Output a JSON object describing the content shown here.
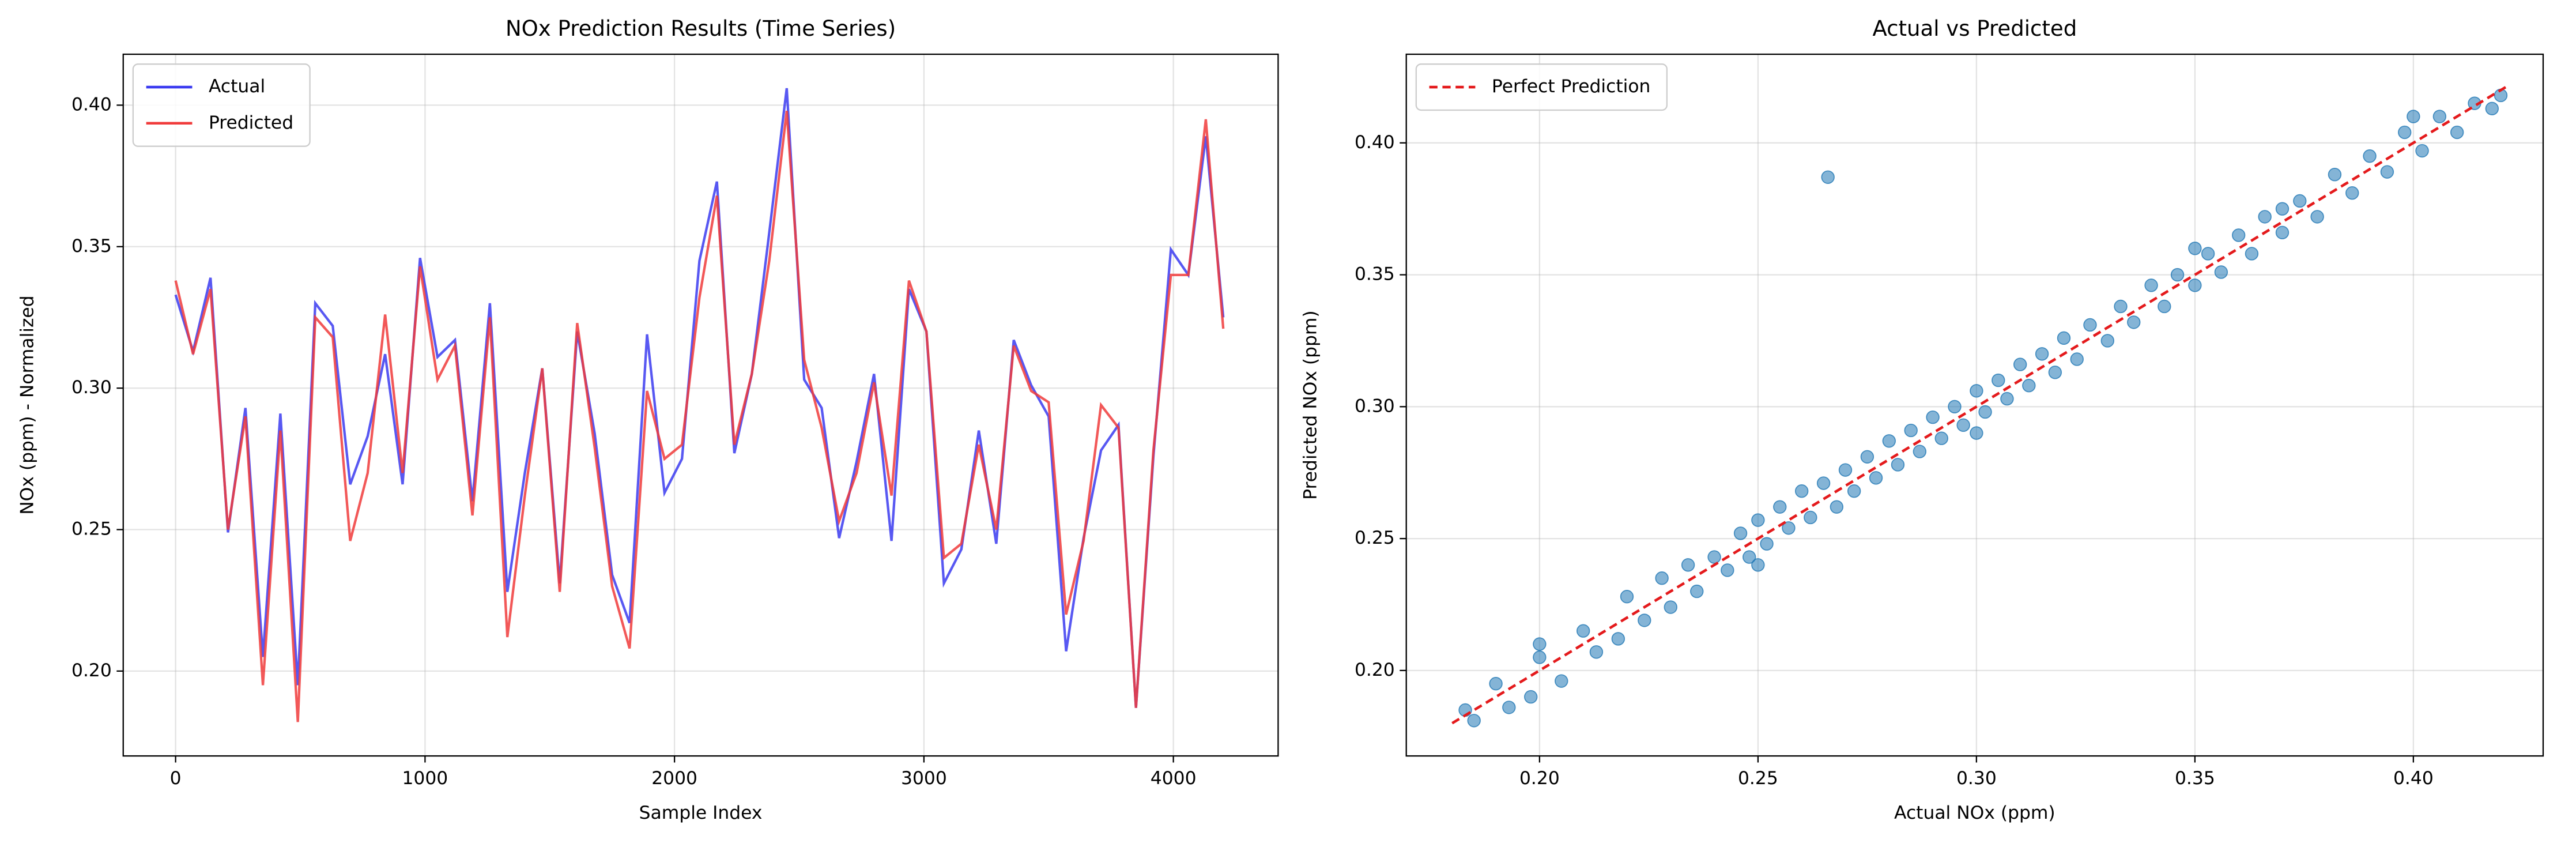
{
  "chart_data": [
    {
      "type": "line",
      "title": "NOx Prediction Results (Time Series)",
      "x_label": "Sample Index",
      "y_label": "NOx (ppm) - Normalized",
      "x": [
        0,
        70,
        140,
        210,
        280,
        350,
        420,
        490,
        560,
        630,
        700,
        770,
        840,
        910,
        980,
        1050,
        1120,
        1190,
        1260,
        1330,
        1400,
        1470,
        1540,
        1610,
        1680,
        1750,
        1820,
        1890,
        1960,
        2030,
        2100,
        2170,
        2240,
        2310,
        2380,
        2450,
        2520,
        2590,
        2660,
        2730,
        2800,
        2870,
        2940,
        3010,
        3080,
        3150,
        3220,
        3290,
        3360,
        3430,
        3500,
        3570,
        3640,
        3710,
        3780,
        3850,
        3920,
        3990,
        4060,
        4130,
        4200
      ],
      "series": [
        {
          "name": "Actual",
          "color": "#3b3bf0",
          "values": [
            0.333,
            0.313,
            0.339,
            0.249,
            0.293,
            0.205,
            0.291,
            0.195,
            0.33,
            0.322,
            0.266,
            0.283,
            0.312,
            0.266,
            0.346,
            0.311,
            0.317,
            0.26,
            0.33,
            0.228,
            0.27,
            0.307,
            0.231,
            0.32,
            0.284,
            0.234,
            0.217,
            0.319,
            0.263,
            0.275,
            0.345,
            0.373,
            0.277,
            0.305,
            0.355,
            0.406,
            0.303,
            0.293,
            0.247,
            0.274,
            0.305,
            0.246,
            0.335,
            0.32,
            0.231,
            0.243,
            0.285,
            0.245,
            0.317,
            0.301,
            0.29,
            0.207,
            0.247,
            0.278,
            0.287,
            0.187,
            0.276,
            0.349,
            0.34,
            0.389,
            0.325
          ]
        },
        {
          "name": "Predicted",
          "color": "#f03b3b",
          "values": [
            0.338,
            0.312,
            0.335,
            0.25,
            0.29,
            0.195,
            0.285,
            0.182,
            0.325,
            0.318,
            0.246,
            0.27,
            0.326,
            0.27,
            0.343,
            0.303,
            0.315,
            0.255,
            0.325,
            0.212,
            0.262,
            0.307,
            0.228,
            0.323,
            0.279,
            0.23,
            0.208,
            0.299,
            0.275,
            0.28,
            0.332,
            0.368,
            0.28,
            0.305,
            0.345,
            0.398,
            0.31,
            0.286,
            0.253,
            0.27,
            0.302,
            0.262,
            0.338,
            0.32,
            0.24,
            0.245,
            0.28,
            0.25,
            0.315,
            0.299,
            0.295,
            0.22,
            0.246,
            0.294,
            0.286,
            0.187,
            0.278,
            0.34,
            0.34,
            0.395,
            0.321
          ]
        }
      ],
      "xlim": [
        -210,
        4420
      ],
      "xticks": [
        0,
        1000,
        2000,
        3000,
        4000
      ],
      "ylim": [
        0.17,
        0.418
      ],
      "yticks": [
        {
          "value": 0.2,
          "label": "0.20"
        },
        {
          "value": 0.25,
          "label": "0.25"
        },
        {
          "value": 0.3,
          "label": "0.30"
        },
        {
          "value": 0.35,
          "label": "0.35"
        },
        {
          "value": 0.4,
          "label": "0.40"
        }
      ],
      "grid": true,
      "legend": "upper left"
    },
    {
      "type": "scatter",
      "title": "Actual vs Predicted",
      "x_label": "Actual NOx (ppm)",
      "y_label": "Predicted NOx (ppm)",
      "color": "#1f77b4",
      "x": [
        0.183,
        0.185,
        0.19,
        0.193,
        0.198,
        0.2,
        0.205,
        0.21,
        0.213,
        0.218,
        0.22,
        0.224,
        0.228,
        0.23,
        0.234,
        0.236,
        0.24,
        0.243,
        0.246,
        0.248,
        0.25,
        0.252,
        0.255,
        0.257,
        0.26,
        0.262,
        0.265,
        0.266,
        0.268,
        0.27,
        0.272,
        0.275,
        0.277,
        0.28,
        0.282,
        0.285,
        0.287,
        0.29,
        0.292,
        0.295,
        0.297,
        0.3,
        0.302,
        0.305,
        0.307,
        0.31,
        0.312,
        0.315,
        0.318,
        0.32,
        0.323,
        0.326,
        0.33,
        0.333,
        0.336,
        0.34,
        0.343,
        0.346,
        0.35,
        0.353,
        0.356,
        0.36,
        0.363,
        0.366,
        0.37,
        0.374,
        0.378,
        0.382,
        0.386,
        0.39,
        0.394,
        0.398,
        0.402,
        0.406,
        0.41,
        0.414,
        0.418,
        0.42,
        0.2,
        0.25,
        0.3,
        0.35,
        0.37,
        0.4
      ],
      "y": [
        0.185,
        0.181,
        0.195,
        0.186,
        0.19,
        0.205,
        0.196,
        0.215,
        0.207,
        0.212,
        0.228,
        0.219,
        0.235,
        0.224,
        0.24,
        0.23,
        0.243,
        0.238,
        0.252,
        0.243,
        0.257,
        0.248,
        0.262,
        0.254,
        0.268,
        0.258,
        0.271,
        0.387,
        0.262,
        0.276,
        0.268,
        0.281,
        0.273,
        0.287,
        0.278,
        0.291,
        0.283,
        0.296,
        0.288,
        0.3,
        0.293,
        0.306,
        0.298,
        0.31,
        0.303,
        0.316,
        0.308,
        0.32,
        0.313,
        0.326,
        0.318,
        0.331,
        0.325,
        0.338,
        0.332,
        0.346,
        0.338,
        0.35,
        0.346,
        0.358,
        0.351,
        0.365,
        0.358,
        0.372,
        0.366,
        0.378,
        0.372,
        0.388,
        0.381,
        0.395,
        0.389,
        0.404,
        0.397,
        0.41,
        0.404,
        0.415,
        0.413,
        0.418,
        0.21,
        0.24,
        0.29,
        0.36,
        0.375,
        0.41
      ],
      "reference_line": {
        "name": "Perfect Prediction",
        "color": "#e41a1c",
        "x": [
          0.18,
          0.422
        ],
        "y": [
          0.18,
          0.422
        ]
      },
      "xlim": [
        0.1695,
        0.4297
      ],
      "xticks": [
        {
          "value": 0.2,
          "label": "0.20"
        },
        {
          "value": 0.25,
          "label": "0.25"
        },
        {
          "value": 0.3,
          "label": "0.30"
        },
        {
          "value": 0.35,
          "label": "0.35"
        },
        {
          "value": 0.4,
          "label": "0.40"
        }
      ],
      "ylim": [
        0.1676,
        0.4336
      ],
      "yticks": [
        {
          "value": 0.2,
          "label": "0.20"
        },
        {
          "value": 0.25,
          "label": "0.25"
        },
        {
          "value": 0.3,
          "label": "0.30"
        },
        {
          "value": 0.35,
          "label": "0.35"
        },
        {
          "value": 0.4,
          "label": "0.40"
        }
      ],
      "grid": true,
      "legend": "upper left"
    }
  ]
}
